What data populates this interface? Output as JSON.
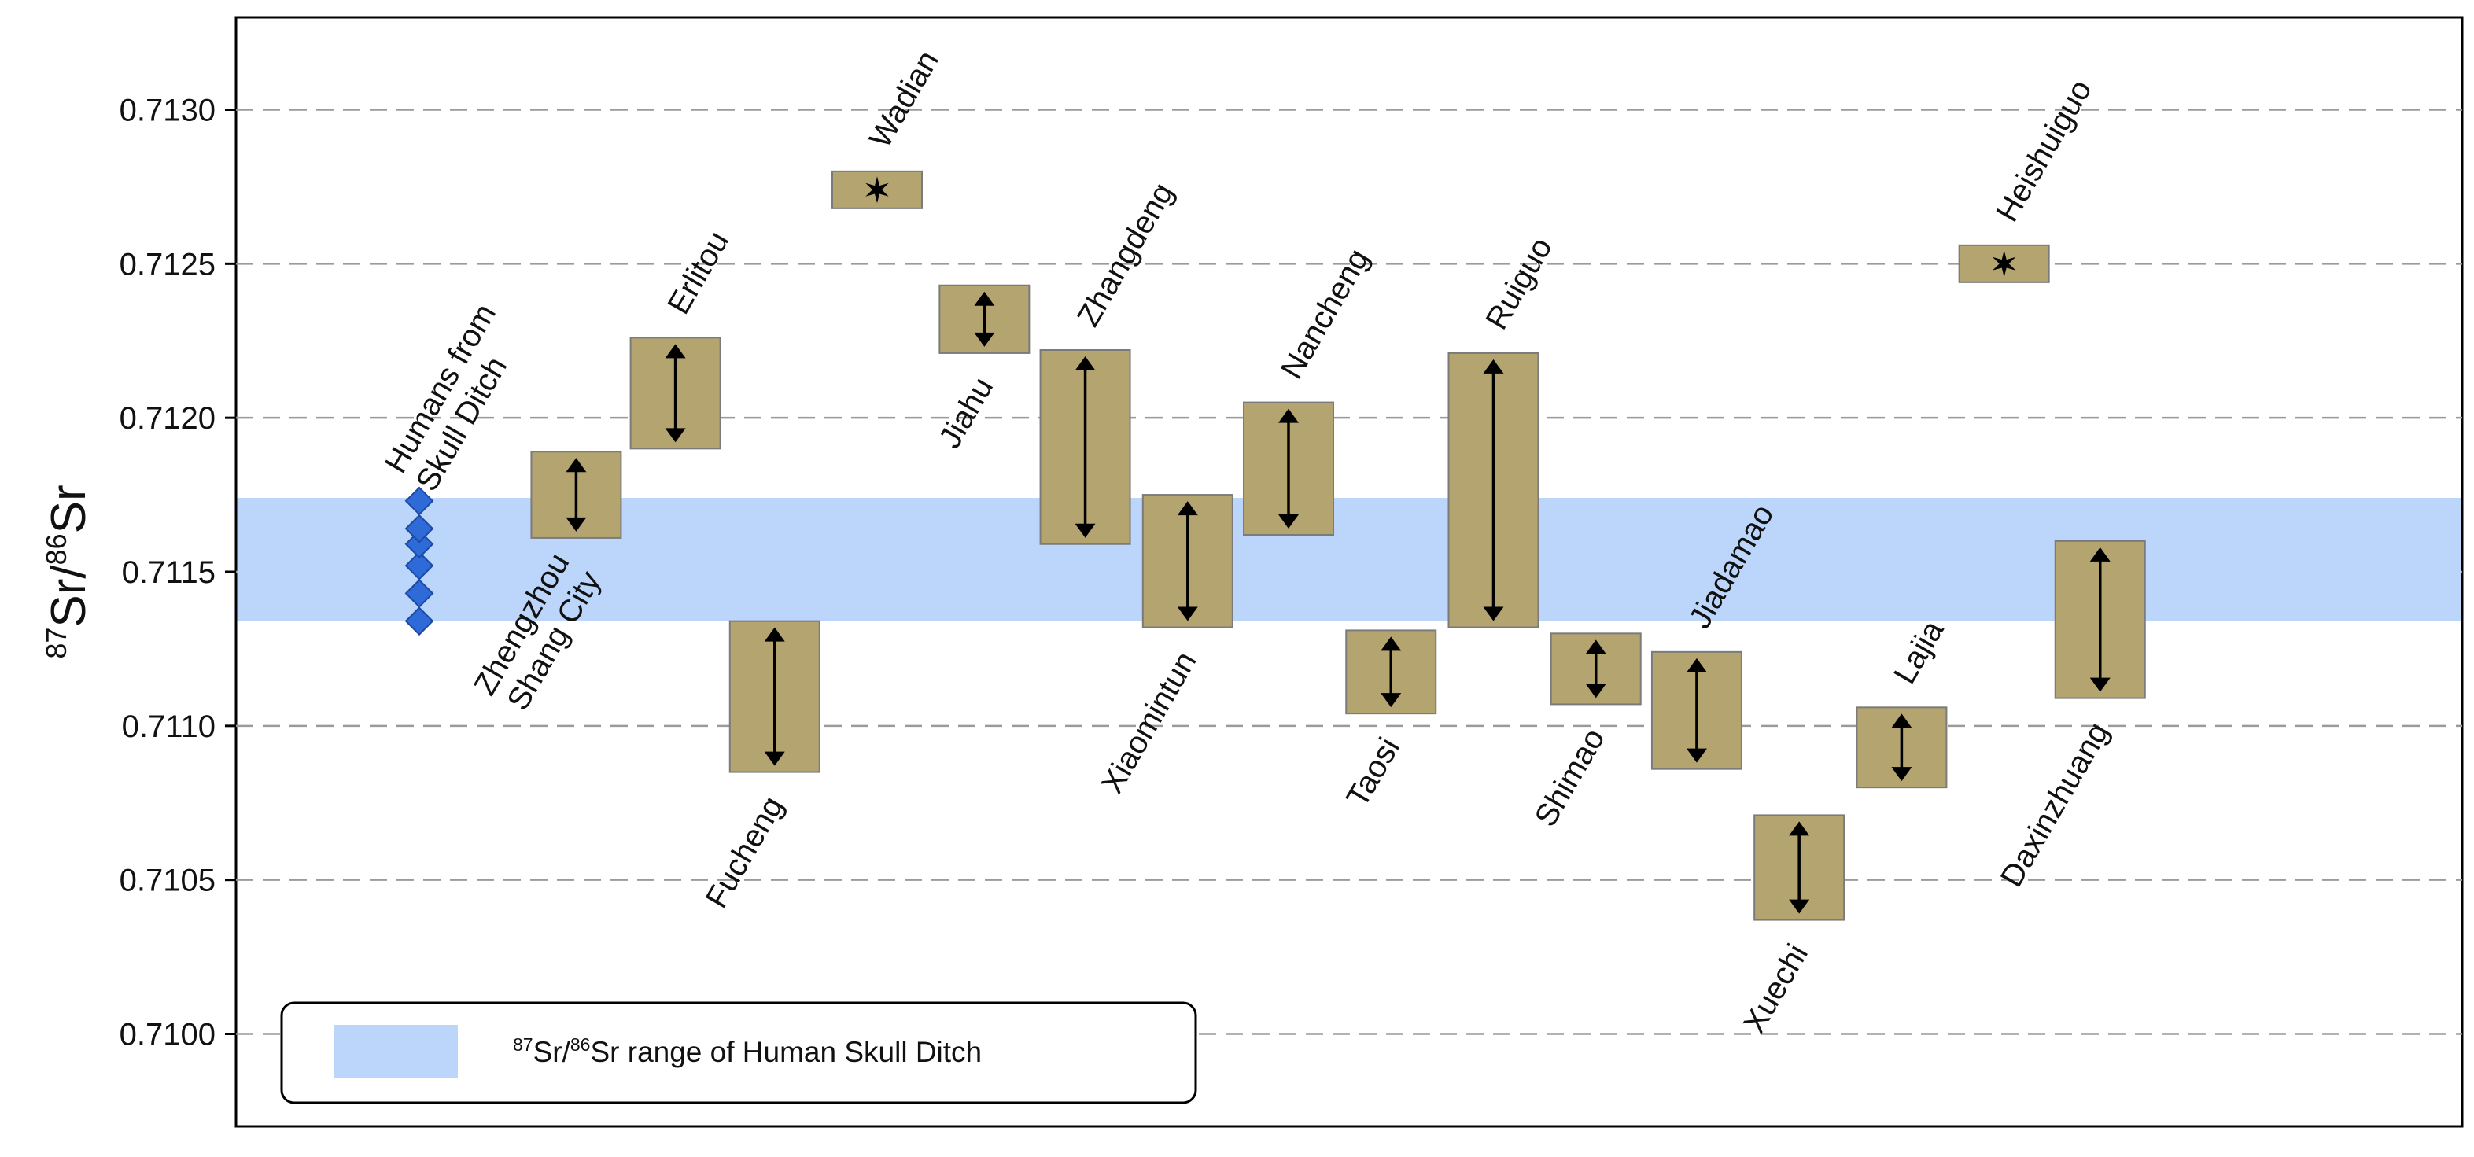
{
  "chart_data": {
    "type": "range",
    "ylabel": {
      "iso1": "87",
      "el1": "Sr",
      "sep": "/",
      "iso2": "86",
      "el2": "Sr"
    },
    "ylim": [
      0.7097,
      0.7133
    ],
    "yticks": [
      0.71,
      0.7105,
      0.711,
      0.7115,
      0.712,
      0.7125,
      0.713
    ],
    "ytick_labels": [
      "0.7100",
      "0.7105",
      "0.7110",
      "0.7115",
      "0.7120",
      "0.7125",
      "0.7130"
    ],
    "grid": "horizontal-dashed",
    "band": {
      "low": 0.71134,
      "high": 0.71174,
      "color": "#bcd5fb"
    },
    "human_points": {
      "values": [
        0.71134,
        0.71143,
        0.71152,
        0.71159,
        0.71164,
        0.71173
      ],
      "color": "#2f6bd8"
    },
    "bar_color": "#b4a470",
    "series": [
      {
        "name": "Zhengzhou Shang City",
        "lines": [
          "Zhengzhou",
          "Shang City"
        ],
        "x": 0.98,
        "low": 0.71161,
        "high": 0.71189,
        "style": "range",
        "label_side": "below"
      },
      {
        "name": "Erlitou",
        "lines": [
          "Erlitou"
        ],
        "x": 1.6,
        "low": 0.7119,
        "high": 0.71226,
        "style": "range",
        "label_side": "above"
      },
      {
        "name": "Fucheng",
        "lines": [
          "Fucheng"
        ],
        "x": 2.22,
        "low": 0.71085,
        "high": 0.71134,
        "style": "range",
        "label_side": "below"
      },
      {
        "name": "Wadian",
        "lines": [
          "Wadian"
        ],
        "x": 2.86,
        "low": 0.71268,
        "high": 0.7128,
        "style": "single",
        "label_side": "above"
      },
      {
        "name": "Jiahu",
        "lines": [
          "Jiahu"
        ],
        "x": 3.53,
        "low": 0.71221,
        "high": 0.71243,
        "style": "range",
        "label_side": "below"
      },
      {
        "name": "Zhangdeng",
        "lines": [
          "Zhangdeng"
        ],
        "x": 4.16,
        "low": 0.71159,
        "high": 0.71222,
        "style": "range",
        "label_side": "above"
      },
      {
        "name": "Xiaomintun",
        "lines": [
          "Xiaomintun"
        ],
        "x": 4.8,
        "low": 0.71132,
        "high": 0.71175,
        "style": "range",
        "label_side": "below"
      },
      {
        "name": "Nancheng",
        "lines": [
          "Nancheng"
        ],
        "x": 5.43,
        "low": 0.71162,
        "high": 0.71205,
        "style": "range",
        "label_side": "above"
      },
      {
        "name": "Taosi",
        "lines": [
          "Taosi"
        ],
        "x": 6.07,
        "low": 0.71104,
        "high": 0.71131,
        "style": "range",
        "label_side": "below"
      },
      {
        "name": "Ruiguo",
        "lines": [
          "Ruiguo"
        ],
        "x": 6.71,
        "low": 0.71132,
        "high": 0.71221,
        "style": "range",
        "label_side": "above"
      },
      {
        "name": "Shimao",
        "lines": [
          "Shimao"
        ],
        "x": 7.35,
        "low": 0.71107,
        "high": 0.7113,
        "style": "range",
        "label_side": "below"
      },
      {
        "name": "Jiadamao",
        "lines": [
          "Jiadamao"
        ],
        "x": 7.98,
        "low": 0.71086,
        "high": 0.71124,
        "style": "range",
        "label_side": "above"
      },
      {
        "name": "Xuechi",
        "lines": [
          "Xuechi"
        ],
        "x": 8.62,
        "low": 0.71037,
        "high": 0.71071,
        "style": "range",
        "label_side": "below"
      },
      {
        "name": "Lajia",
        "lines": [
          "Lajia"
        ],
        "x": 9.26,
        "low": 0.7108,
        "high": 0.71106,
        "style": "range",
        "label_side": "above"
      },
      {
        "name": "Heishuiguo",
        "lines": [
          "Heishuiguo"
        ],
        "x": 9.9,
        "low": 0.71244,
        "high": 0.71256,
        "style": "single",
        "label_side": "above"
      },
      {
        "name": "Daxinzhuang",
        "lines": [
          "Daxinzhuang"
        ],
        "x": 10.5,
        "low": 0.71109,
        "high": 0.7116,
        "style": "range",
        "label_side": "below"
      }
    ],
    "human_label": {
      "lines": [
        "Humans from",
        "Skull Ditch"
      ]
    },
    "legend": {
      "position": "bottom-left",
      "iso1": "87",
      "el1": "Sr",
      "sep": "/",
      "iso2": "86",
      "text": "Sr range of Human Skull Ditch"
    }
  }
}
